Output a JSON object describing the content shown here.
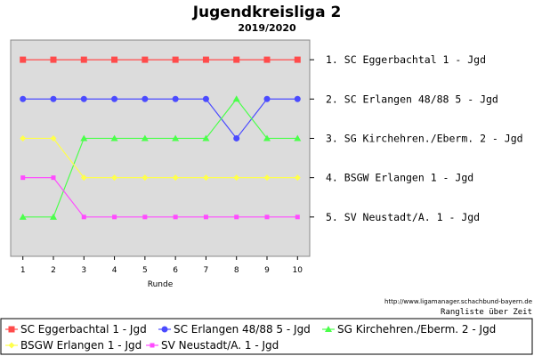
{
  "header": {
    "title": "Jugendkreisliga 2",
    "subtitle": "2019/2020"
  },
  "footer": {
    "url": "http://www.ligamanager.schachbund-bayern.de",
    "caption": "Rangliste über Zeit"
  },
  "chart_data": {
    "type": "line",
    "title": "Jugendkreisliga 2",
    "subtitle": "2019/2020",
    "xlabel": "Runde",
    "ylabel": "",
    "x": [
      1,
      2,
      3,
      4,
      5,
      6,
      7,
      8,
      9,
      10
    ],
    "xlim": [
      0.6,
      10.4
    ],
    "ylim": [
      6,
      0.5
    ],
    "y_inverted": true,
    "grid": false,
    "background": "#dcdcdc",
    "legend_position": "bottom",
    "rank_labels": [
      "1. SC Eggerbachtal 1 - Jgd",
      "2. SC Erlangen 48/88 5 - Jgd",
      "3. SG Kirchehren./Eberm. 2 - Jgd",
      "4. BSGW Erlangen 1 - Jgd",
      "5. SV Neustadt/A. 1 - Jgd"
    ],
    "series": [
      {
        "name": "SC Eggerbachtal 1 - Jgd",
        "color": "#ff4b4b",
        "marker": "square",
        "values": [
          1,
          1,
          1,
          1,
          1,
          1,
          1,
          1,
          1,
          1
        ]
      },
      {
        "name": "SC Erlangen 48/88 5 - Jgd",
        "color": "#4b4bff",
        "marker": "circle",
        "values": [
          2,
          2,
          2,
          2,
          2,
          2,
          2,
          3,
          2,
          2
        ]
      },
      {
        "name": "SG Kirchehren./Eberm. 2 - Jgd",
        "color": "#4bff4b",
        "marker": "triangle",
        "values": [
          5,
          5,
          3,
          3,
          3,
          3,
          3,
          2,
          3,
          3
        ]
      },
      {
        "name": "BSGW Erlangen 1 - Jgd",
        "color": "#ffff4b",
        "marker": "diamond",
        "values": [
          3,
          3,
          4,
          4,
          4,
          4,
          4,
          4,
          4,
          4
        ]
      },
      {
        "name": "SV Neustadt/A. 1 - Jgd",
        "color": "#ff4bff",
        "marker": "square-small",
        "values": [
          4,
          4,
          5,
          5,
          5,
          5,
          5,
          5,
          5,
          5
        ]
      }
    ]
  }
}
